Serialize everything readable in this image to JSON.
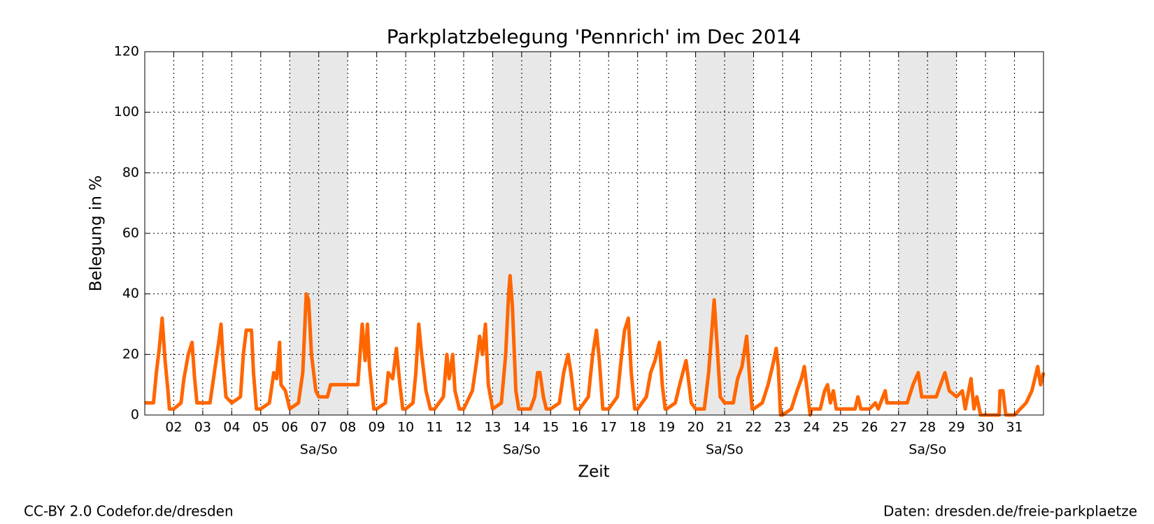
{
  "chart_data": {
    "type": "line",
    "title": "Parkplatzbelegung 'Pennrich' im Dec 2014",
    "xlabel": "Zeit",
    "ylabel": "Belegung in %",
    "color": "#ff6600",
    "grid": true,
    "xlim": [
      1,
      32
    ],
    "ylim": [
      0,
      120
    ],
    "yticks": [
      0,
      20,
      40,
      60,
      80,
      100,
      120
    ],
    "xticks": [
      {
        "value": 2,
        "label": "02"
      },
      {
        "value": 3,
        "label": "03"
      },
      {
        "value": 4,
        "label": "04"
      },
      {
        "value": 5,
        "label": "05"
      },
      {
        "value": 6,
        "label": "06"
      },
      {
        "value": 7,
        "label": "07"
      },
      {
        "value": 8,
        "label": "08"
      },
      {
        "value": 9,
        "label": "09"
      },
      10,
      11,
      12,
      13,
      14,
      15,
      16,
      17,
      18,
      19,
      20,
      21,
      22,
      23,
      24,
      25,
      26,
      27,
      28,
      29,
      30,
      31
    ],
    "weekends": [
      {
        "start": 6,
        "end": 8,
        "label": "Sa/So"
      },
      {
        "start": 13,
        "end": 15,
        "label": "Sa/So"
      },
      {
        "start": 20,
        "end": 22,
        "label": "Sa/So"
      },
      {
        "start": 27,
        "end": 29,
        "label": "Sa/So"
      }
    ],
    "x": [
      1.0,
      1.3,
      1.4,
      1.5,
      1.6,
      1.7,
      1.8,
      1.85,
      2.0,
      2.25,
      2.35,
      2.5,
      2.63,
      2.72,
      2.8,
      3.0,
      3.25,
      3.4,
      3.55,
      3.63,
      3.7,
      3.8,
      4.0,
      4.3,
      4.4,
      4.5,
      4.68,
      4.75,
      4.85,
      5.0,
      5.3,
      5.45,
      5.55,
      5.65,
      5.7,
      5.85,
      6.0,
      6.3,
      6.45,
      6.57,
      6.65,
      6.75,
      6.9,
      7.0,
      7.3,
      7.41,
      8.35,
      8.5,
      8.6,
      8.68,
      8.75,
      8.9,
      9.0,
      9.3,
      9.4,
      9.55,
      9.68,
      9.8,
      9.9,
      10.0,
      10.25,
      10.35,
      10.45,
      10.55,
      10.7,
      10.85,
      11.0,
      11.3,
      11.42,
      11.5,
      11.62,
      11.7,
      11.85,
      12.0,
      12.3,
      12.45,
      12.55,
      12.65,
      12.75,
      12.85,
      13.0,
      13.3,
      13.45,
      13.55,
      13.6,
      13.68,
      13.8,
      13.9,
      14.0,
      14.3,
      14.45,
      14.55,
      14.63,
      14.75,
      14.85,
      15.0,
      15.3,
      15.45,
      15.6,
      15.7,
      15.85,
      16.0,
      16.3,
      16.45,
      16.58,
      16.68,
      16.8,
      17.0,
      17.3,
      17.45,
      17.55,
      17.68,
      17.78,
      17.9,
      18.0,
      18.3,
      18.45,
      18.6,
      18.75,
      18.85,
      18.95,
      19.0,
      19.3,
      19.45,
      19.67,
      19.75,
      19.85,
      20.0,
      20.3,
      20.45,
      20.64,
      20.75,
      20.85,
      21.0,
      21.3,
      21.45,
      21.6,
      21.76,
      21.85,
      21.95,
      22.0,
      22.3,
      22.5,
      22.65,
      22.78,
      22.85,
      22.93,
      23.0,
      23.3,
      23.5,
      23.65,
      23.75,
      23.85,
      23.95,
      24.0,
      24.3,
      24.45,
      24.55,
      24.65,
      24.75,
      24.85,
      25.0,
      25.5,
      25.6,
      25.7,
      26.0,
      26.2,
      26.3,
      26.54,
      26.6,
      27.0,
      27.3,
      27.5,
      27.68,
      27.8,
      28.0,
      28.3,
      28.45,
      28.6,
      28.75,
      29.0,
      29.2,
      29.3,
      29.5,
      29.6,
      29.7,
      29.83,
      30.0,
      30.47,
      30.5,
      30.6,
      30.7,
      31.0,
      31.2,
      31.4,
      31.6,
      31.8,
      31.9,
      32.0
    ],
    "values": [
      4,
      4,
      14,
      22,
      32,
      18,
      8,
      2,
      2,
      4,
      12,
      20,
      24,
      12,
      4,
      4,
      4,
      14,
      24,
      30,
      18,
      6,
      4,
      6,
      20,
      28,
      28,
      14,
      2,
      2,
      4,
      14,
      12,
      24,
      10,
      8,
      2,
      4,
      14,
      40,
      38,
      20,
      8,
      6,
      6,
      10,
      10,
      30,
      18,
      30,
      16,
      2,
      2,
      4,
      14,
      12,
      22,
      10,
      2,
      2,
      4,
      14,
      30,
      20,
      8,
      2,
      2,
      6,
      20,
      12,
      20,
      8,
      2,
      2,
      8,
      18,
      26,
      20,
      30,
      10,
      2,
      4,
      20,
      40,
      46,
      36,
      8,
      2,
      2,
      2,
      6,
      14,
      14,
      6,
      2,
      2,
      4,
      14,
      20,
      14,
      2,
      2,
      6,
      20,
      28,
      18,
      2,
      2,
      6,
      20,
      28,
      32,
      14,
      2,
      2,
      6,
      14,
      18,
      24,
      10,
      2,
      2,
      4,
      10,
      18,
      12,
      4,
      2,
      2,
      14,
      38,
      22,
      6,
      4,
      4,
      12,
      16,
      26,
      14,
      2,
      2,
      4,
      10,
      16,
      22,
      16,
      0,
      0,
      2,
      8,
      12,
      16,
      8,
      0,
      2,
      2,
      8,
      10,
      4,
      8,
      2,
      2,
      2,
      6,
      2,
      2,
      4,
      2,
      8,
      4,
      4,
      4,
      10,
      14,
      6,
      6,
      6,
      10,
      14,
      8,
      6,
      8,
      2,
      12,
      2,
      6,
      0,
      0,
      0,
      8,
      8,
      0,
      0,
      2,
      4,
      8,
      16,
      10,
      14
    ],
    "footer_left": "CC-BY 2.0 Codefor.de/dresden",
    "footer_right": "Daten: dresden.de/freie-parkplaetze"
  }
}
